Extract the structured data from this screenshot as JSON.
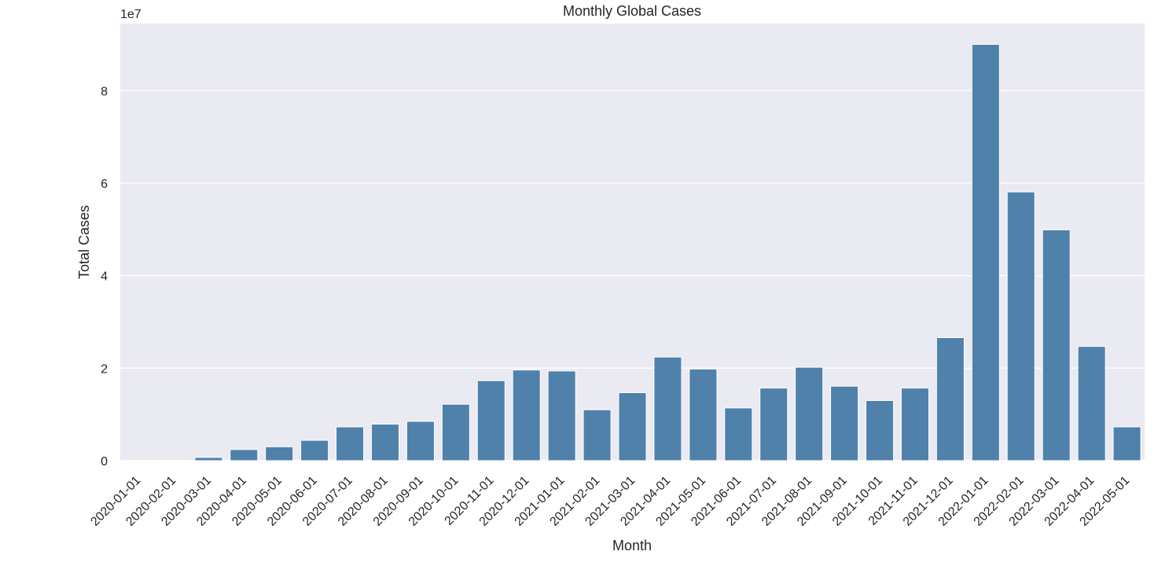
{
  "chart_data": {
    "type": "bar",
    "title": "Monthly Global Cases",
    "xlabel": "Month",
    "ylabel": "Total Cases",
    "y_offset_label": "1e7",
    "y_scale": 10000000,
    "ylim": [
      0,
      94500000
    ],
    "yticks": [
      0,
      20000000,
      40000000,
      60000000,
      80000000
    ],
    "ytick_labels": [
      "0",
      "2",
      "4",
      "6",
      "8"
    ],
    "grid": true,
    "legend": "none",
    "colors": {
      "bar": "#4f81ab",
      "plot_bg": "#eaeaf2",
      "grid": "#ffffff"
    },
    "categories": [
      "2020-01-01",
      "2020-02-01",
      "2020-03-01",
      "2020-04-01",
      "2020-05-01",
      "2020-06-01",
      "2020-07-01",
      "2020-08-01",
      "2020-09-01",
      "2020-10-01",
      "2020-11-01",
      "2020-12-01",
      "2021-01-01",
      "2021-02-01",
      "2021-03-01",
      "2021-04-01",
      "2021-05-01",
      "2021-06-01",
      "2021-07-01",
      "2021-08-01",
      "2021-09-01",
      "2021-10-01",
      "2021-11-01",
      "2021-12-01",
      "2022-01-01",
      "2022-02-01",
      "2022-03-01",
      "2022-04-01",
      "2022-05-01"
    ],
    "values": [
      10000,
      70000,
      700000,
      2400000,
      3000000,
      4400000,
      7300000,
      7900000,
      8500000,
      12200000,
      17300000,
      19600000,
      19400000,
      11000000,
      14700000,
      22400000,
      19800000,
      11400000,
      15700000,
      20200000,
      16100000,
      13000000,
      15700000,
      26600000,
      90000000,
      58100000,
      49900000,
      24700000,
      7300000
    ]
  }
}
